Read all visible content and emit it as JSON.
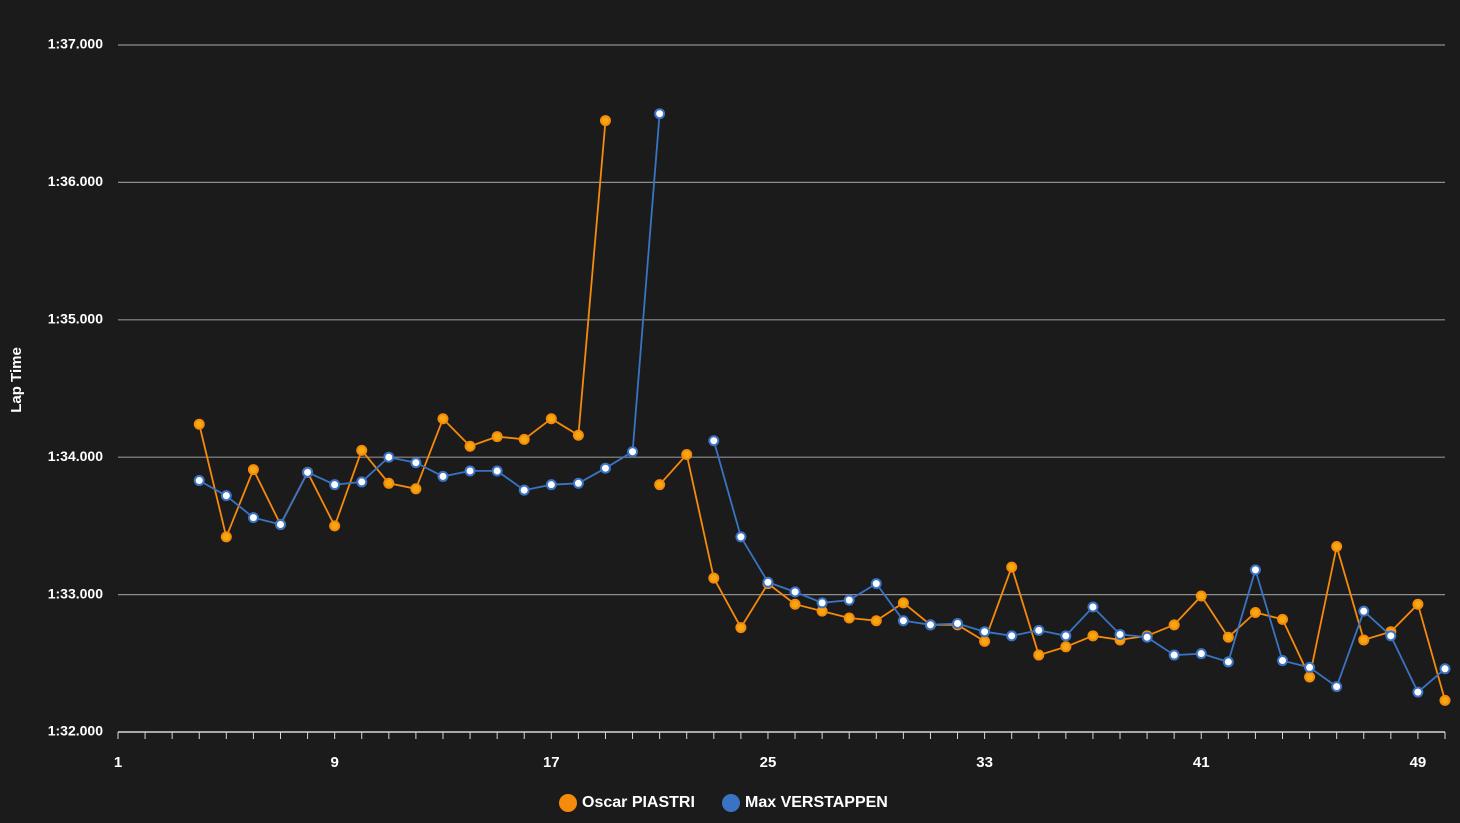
{
  "chart_data": {
    "type": "line",
    "ylabel": "Lap Time",
    "xlabel": "",
    "xlim": [
      1,
      50
    ],
    "ylim": [
      92,
      97
    ],
    "x_tick_labels": [
      "1",
      "9",
      "17",
      "25",
      "33",
      "41",
      "49"
    ],
    "x_tick_values": [
      1,
      9,
      17,
      25,
      33,
      41,
      49
    ],
    "y_tick_labels": [
      "1:32.000",
      "1:33.000",
      "1:34.000",
      "1:35.000",
      "1:36.000",
      "1:37.000"
    ],
    "y_tick_values": [
      92,
      93,
      94,
      95,
      96,
      97
    ],
    "grid": true,
    "legend_position": "bottom",
    "series": [
      {
        "name": "Oscar PIASTRI",
        "color": "#f58a0b",
        "marker_fill": "#f5a80f",
        "x": [
          4,
          5,
          6,
          7,
          8,
          9,
          10,
          11,
          12,
          13,
          14,
          15,
          16,
          17,
          18,
          19,
          21,
          22,
          23,
          24,
          25,
          26,
          27,
          28,
          29,
          30,
          31,
          32,
          33,
          34,
          35,
          36,
          37,
          38,
          39,
          40,
          41,
          42,
          43,
          44,
          45,
          46,
          47,
          48,
          49,
          50
        ],
        "y": [
          94.24,
          93.42,
          93.91,
          93.51,
          93.89,
          93.5,
          94.05,
          93.81,
          93.77,
          94.28,
          94.08,
          94.15,
          94.13,
          94.28,
          94.16,
          96.45,
          93.8,
          94.02,
          93.12,
          92.76,
          93.08,
          92.93,
          92.88,
          92.83,
          92.81,
          92.94,
          92.78,
          92.78,
          92.66,
          93.2,
          92.56,
          92.62,
          92.7,
          92.67,
          92.7,
          92.78,
          92.99,
          92.69,
          92.87,
          92.82,
          92.4,
          93.35,
          92.67,
          92.73,
          92.93,
          92.23
        ]
      },
      {
        "name": "Max VERSTAPPEN",
        "color": "#3a73c4",
        "marker_fill": "#ffffff",
        "x": [
          4,
          5,
          6,
          7,
          8,
          9,
          10,
          11,
          12,
          13,
          14,
          15,
          16,
          17,
          18,
          19,
          20,
          21,
          23,
          24,
          25,
          26,
          27,
          28,
          29,
          30,
          31,
          32,
          33,
          34,
          35,
          36,
          37,
          38,
          39,
          40,
          41,
          42,
          43,
          44,
          45,
          46,
          47,
          48,
          49,
          50
        ],
        "y": [
          93.83,
          93.72,
          93.56,
          93.51,
          93.89,
          93.8,
          93.82,
          94.0,
          93.96,
          93.86,
          93.9,
          93.9,
          93.76,
          93.8,
          93.81,
          93.92,
          94.04,
          96.5,
          94.12,
          93.42,
          93.09,
          93.02,
          92.94,
          92.96,
          93.08,
          92.81,
          92.78,
          92.79,
          92.73,
          92.7,
          92.74,
          92.7,
          92.91,
          92.71,
          92.69,
          92.56,
          92.57,
          92.51,
          93.18,
          92.52,
          92.47,
          92.33,
          92.88,
          92.7,
          92.29,
          92.46
        ]
      }
    ]
  }
}
